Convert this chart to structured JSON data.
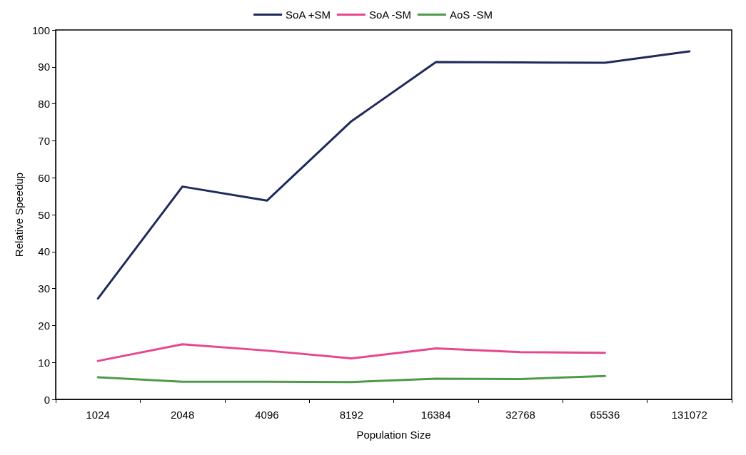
{
  "chart_data": {
    "type": "line",
    "xlabel": "Population Size",
    "ylabel": "Relative Speedup",
    "categories": [
      "1024",
      "2048",
      "4096",
      "8192",
      "16384",
      "32768",
      "65536",
      "131072"
    ],
    "series": [
      {
        "name": "SoA +SM",
        "color": "#1f2a5c",
        "values": [
          27.3,
          57.6,
          53.8,
          75.3,
          91.3,
          91.2,
          91.1,
          94.2
        ]
      },
      {
        "name": "SoA -SM",
        "color": "#e8478f",
        "values": [
          10.4,
          14.9,
          13.2,
          11.1,
          13.8,
          12.8,
          12.6,
          null
        ]
      },
      {
        "name": "AoS -SM",
        "color": "#4f9a4a",
        "values": [
          6.0,
          4.8,
          4.8,
          4.7,
          5.6,
          5.5,
          6.3,
          null
        ]
      }
    ],
    "ylim": [
      0,
      100
    ],
    "yticks": [
      0,
      10,
      20,
      30,
      40,
      50,
      60,
      70,
      80,
      90,
      100
    ],
    "grid": false,
    "legend": "top",
    "marker": "none",
    "line_style": "solid"
  }
}
